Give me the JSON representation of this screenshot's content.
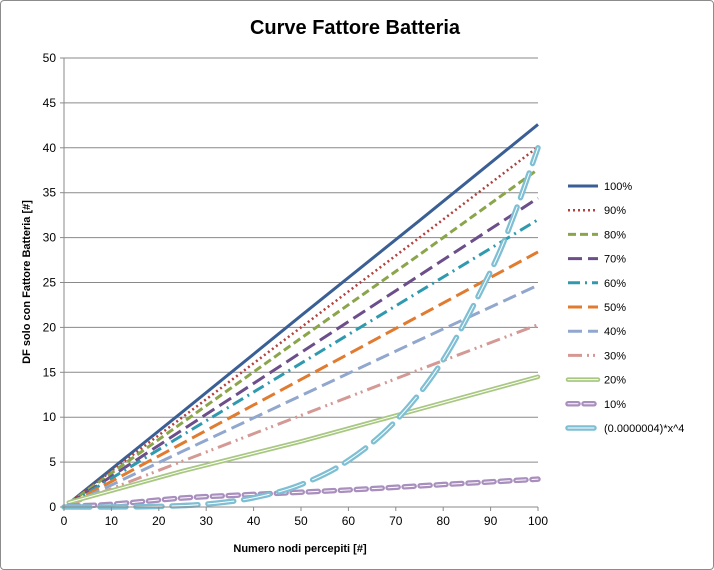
{
  "chart_data": {
    "type": "line",
    "title": "Curve Fattore Batteria",
    "xlabel": "Numero nodi percepiti [#]",
    "ylabel": "DF solo con Fattore Batteria [#]",
    "xlim": [
      0,
      100
    ],
    "ylim": [
      0,
      50
    ],
    "x_ticks": [
      "0",
      "10",
      "20",
      "30",
      "40",
      "50",
      "60",
      "70",
      "80",
      "90",
      "100"
    ],
    "y_ticks": [
      "0",
      "5",
      "10",
      "15",
      "20",
      "25",
      "30",
      "35",
      "40",
      "45",
      "50"
    ],
    "grid": "horizontal",
    "legend_position": "right",
    "series": [
      {
        "name": "100%",
        "color": "#3a5f95",
        "style": "solid",
        "points": [
          [
            1,
            0.4
          ],
          [
            25,
            10.6
          ],
          [
            50,
            21.3
          ],
          [
            75,
            31.9
          ],
          [
            100,
            42.6
          ]
        ]
      },
      {
        "name": "90%",
        "color": "#b0413e",
        "style": "dotted",
        "points": [
          [
            1,
            0.4
          ],
          [
            25,
            10.0
          ],
          [
            50,
            20.0
          ],
          [
            75,
            30.0
          ],
          [
            100,
            40.1
          ]
        ]
      },
      {
        "name": "80%",
        "color": "#8ba54a",
        "style": "dash",
        "points": [
          [
            1,
            0.4
          ],
          [
            25,
            9.4
          ],
          [
            50,
            18.8
          ],
          [
            75,
            28.1
          ],
          [
            100,
            37.6
          ]
        ]
      },
      {
        "name": "70%",
        "color": "#6c4f8a",
        "style": "longdash",
        "points": [
          [
            1,
            0.3
          ],
          [
            25,
            8.6
          ],
          [
            50,
            17.2
          ],
          [
            75,
            25.8
          ],
          [
            100,
            34.4
          ]
        ]
      },
      {
        "name": "60%",
        "color": "#2f9aaf",
        "style": "dashdot",
        "points": [
          [
            1,
            0.3
          ],
          [
            25,
            8.0
          ],
          [
            50,
            16.0
          ],
          [
            75,
            24.0
          ],
          [
            100,
            32.0
          ]
        ]
      },
      {
        "name": "50%",
        "color": "#e07b2f",
        "style": "longdash",
        "points": [
          [
            1,
            0.3
          ],
          [
            25,
            7.1
          ],
          [
            50,
            14.2
          ],
          [
            75,
            21.3
          ],
          [
            100,
            28.4
          ]
        ]
      },
      {
        "name": "40%",
        "color": "#91a7ce",
        "style": "longdash",
        "points": [
          [
            1,
            0.2
          ],
          [
            25,
            6.2
          ],
          [
            50,
            12.4
          ],
          [
            75,
            18.6
          ],
          [
            100,
            24.7
          ]
        ]
      },
      {
        "name": "30%",
        "color": "#d49995",
        "style": "dashdotdot",
        "points": [
          [
            1,
            0.2
          ],
          [
            25,
            5.1
          ],
          [
            50,
            10.2
          ],
          [
            75,
            15.3
          ],
          [
            100,
            20.3
          ]
        ]
      },
      {
        "name": "20%",
        "color": "#a8c882",
        "style": "double",
        "points": [
          [
            1,
            0.5
          ],
          [
            25,
            4.0
          ],
          [
            50,
            7.3
          ],
          [
            75,
            10.9
          ],
          [
            100,
            14.5
          ]
        ]
      },
      {
        "name": "10%",
        "color": "#a98fbe",
        "style": "double-dash",
        "points": [
          [
            1,
            0.1
          ],
          [
            10,
            0.3
          ],
          [
            25,
            1.0
          ],
          [
            40,
            1.4
          ],
          [
            60,
            1.9
          ],
          [
            80,
            2.5
          ],
          [
            100,
            3.1
          ]
        ]
      },
      {
        "name": "(0.0000004)*x^4",
        "color": "#7fbfd4",
        "style": "double-longdash",
        "points": [
          [
            0,
            0
          ],
          [
            10,
            0.004
          ],
          [
            20,
            0.064
          ],
          [
            30,
            0.324
          ],
          [
            40,
            1.024
          ],
          [
            50,
            2.5
          ],
          [
            60,
            5.184
          ],
          [
            70,
            9.604
          ],
          [
            80,
            16.384
          ],
          [
            90,
            26.244
          ],
          [
            95,
            32.58
          ],
          [
            100,
            40.0
          ]
        ]
      }
    ]
  }
}
